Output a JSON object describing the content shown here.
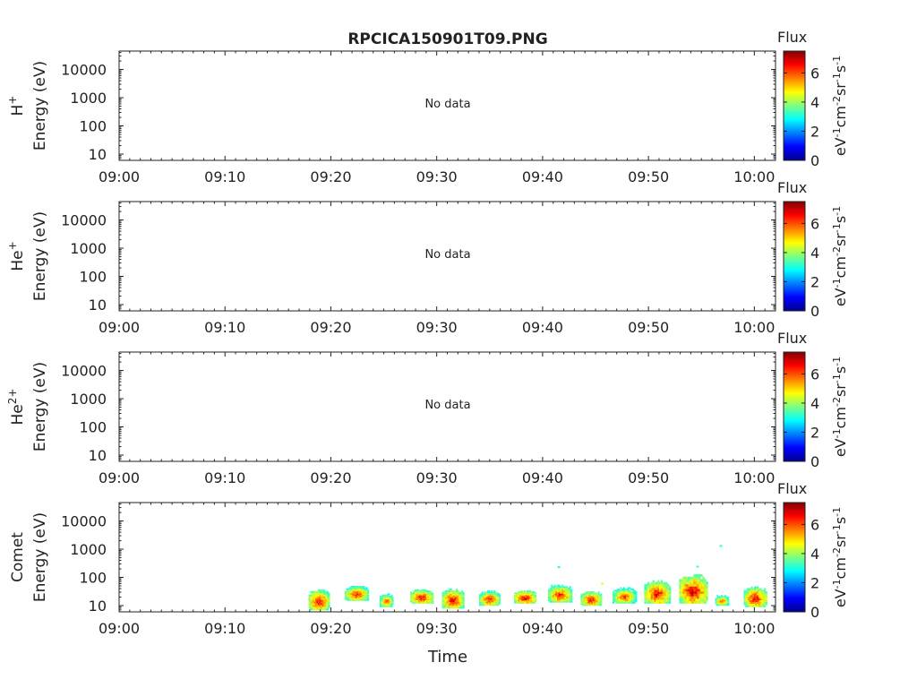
{
  "title": "RPCICA150901T09.PNG",
  "xlabel": "Time",
  "time_ticks": [
    "09:00",
    "09:10",
    "09:20",
    "09:30",
    "09:40",
    "09:50",
    "10:00"
  ],
  "energy_ticks": [
    "10",
    "100",
    "1000",
    "10000"
  ],
  "colorbar": {
    "title": "Flux",
    "ticks": [
      "0",
      "2",
      "4",
      "6"
    ],
    "range": [
      0,
      7.5
    ],
    "label_parts": [
      "eV",
      "-1",
      "cm",
      "-2",
      "sr",
      "-1",
      "s",
      "-1"
    ]
  },
  "no_data_text": "No data",
  "chart_data": [
    {
      "type": "heatmap",
      "species": "H",
      "species_sup": "+",
      "ylabel": "Energy (eV)",
      "yscale": "log",
      "ylim": [
        6,
        45000
      ],
      "xlim_min": [
        0,
        62
      ],
      "status": "No data",
      "blobs": []
    },
    {
      "type": "heatmap",
      "species": "He",
      "species_sup": "+",
      "ylabel": "Energy (eV)",
      "yscale": "log",
      "ylim": [
        6,
        45000
      ],
      "xlim_min": [
        0,
        62
      ],
      "status": "No data",
      "blobs": []
    },
    {
      "type": "heatmap",
      "species": "He",
      "species_sup": "2+",
      "ylabel": "Energy (eV)",
      "yscale": "log",
      "ylim": [
        6,
        45000
      ],
      "xlim_min": [
        0,
        62
      ],
      "status": "No data",
      "blobs": []
    },
    {
      "type": "heatmap",
      "species": "Comet",
      "species_sup": "",
      "ylabel": "Energy (eV)",
      "yscale": "log",
      "ylim": [
        6,
        45000
      ],
      "xlim_min": [
        0,
        62
      ],
      "status": "",
      "blobs": [
        {
          "t0": 17.9,
          "t1": 19.9,
          "e_lo": 7,
          "e_hi": 38,
          "peak": 6.8
        },
        {
          "t0": 21.3,
          "t1": 23.6,
          "e_lo": 15,
          "e_hi": 50,
          "peak": 6.6
        },
        {
          "t0": 24.6,
          "t1": 25.9,
          "e_lo": 9,
          "e_hi": 27,
          "peak": 6.2
        },
        {
          "t0": 27.5,
          "t1": 29.7,
          "e_lo": 12,
          "e_hi": 38,
          "peak": 6.8
        },
        {
          "t0": 30.5,
          "t1": 32.6,
          "e_lo": 8,
          "e_hi": 40,
          "peak": 6.8
        },
        {
          "t0": 34.0,
          "t1": 36.0,
          "e_lo": 10,
          "e_hi": 35,
          "peak": 6.6
        },
        {
          "t0": 37.3,
          "t1": 39.4,
          "e_lo": 12,
          "e_hi": 35,
          "peak": 7.0
        },
        {
          "t0": 40.5,
          "t1": 42.8,
          "e_lo": 13,
          "e_hi": 55,
          "peak": 6.6
        },
        {
          "t0": 43.6,
          "t1": 45.6,
          "e_lo": 10,
          "e_hi": 32,
          "peak": 6.8
        },
        {
          "t0": 46.6,
          "t1": 48.9,
          "e_lo": 12,
          "e_hi": 45,
          "peak": 6.2
        },
        {
          "t0": 49.6,
          "t1": 52.1,
          "e_lo": 12,
          "e_hi": 80,
          "peak": 6.8
        },
        {
          "t0": 52.9,
          "t1": 55.6,
          "e_lo": 12,
          "e_hi": 130,
          "peak": 7.0
        },
        {
          "t0": 56.3,
          "t1": 57.6,
          "e_lo": 10,
          "e_hi": 24,
          "peak": 6.2
        },
        {
          "t0": 59.0,
          "t1": 61.2,
          "e_lo": 9,
          "e_hi": 48,
          "peak": 6.8
        }
      ],
      "specks": [
        {
          "t": 41.5,
          "e": 230,
          "v": 3.0
        },
        {
          "t": 54.6,
          "e": 240,
          "v": 3.3
        },
        {
          "t": 56.8,
          "e": 1300,
          "v": 3.2
        },
        {
          "t": 45.6,
          "e": 60,
          "v": 4.5
        }
      ]
    }
  ]
}
